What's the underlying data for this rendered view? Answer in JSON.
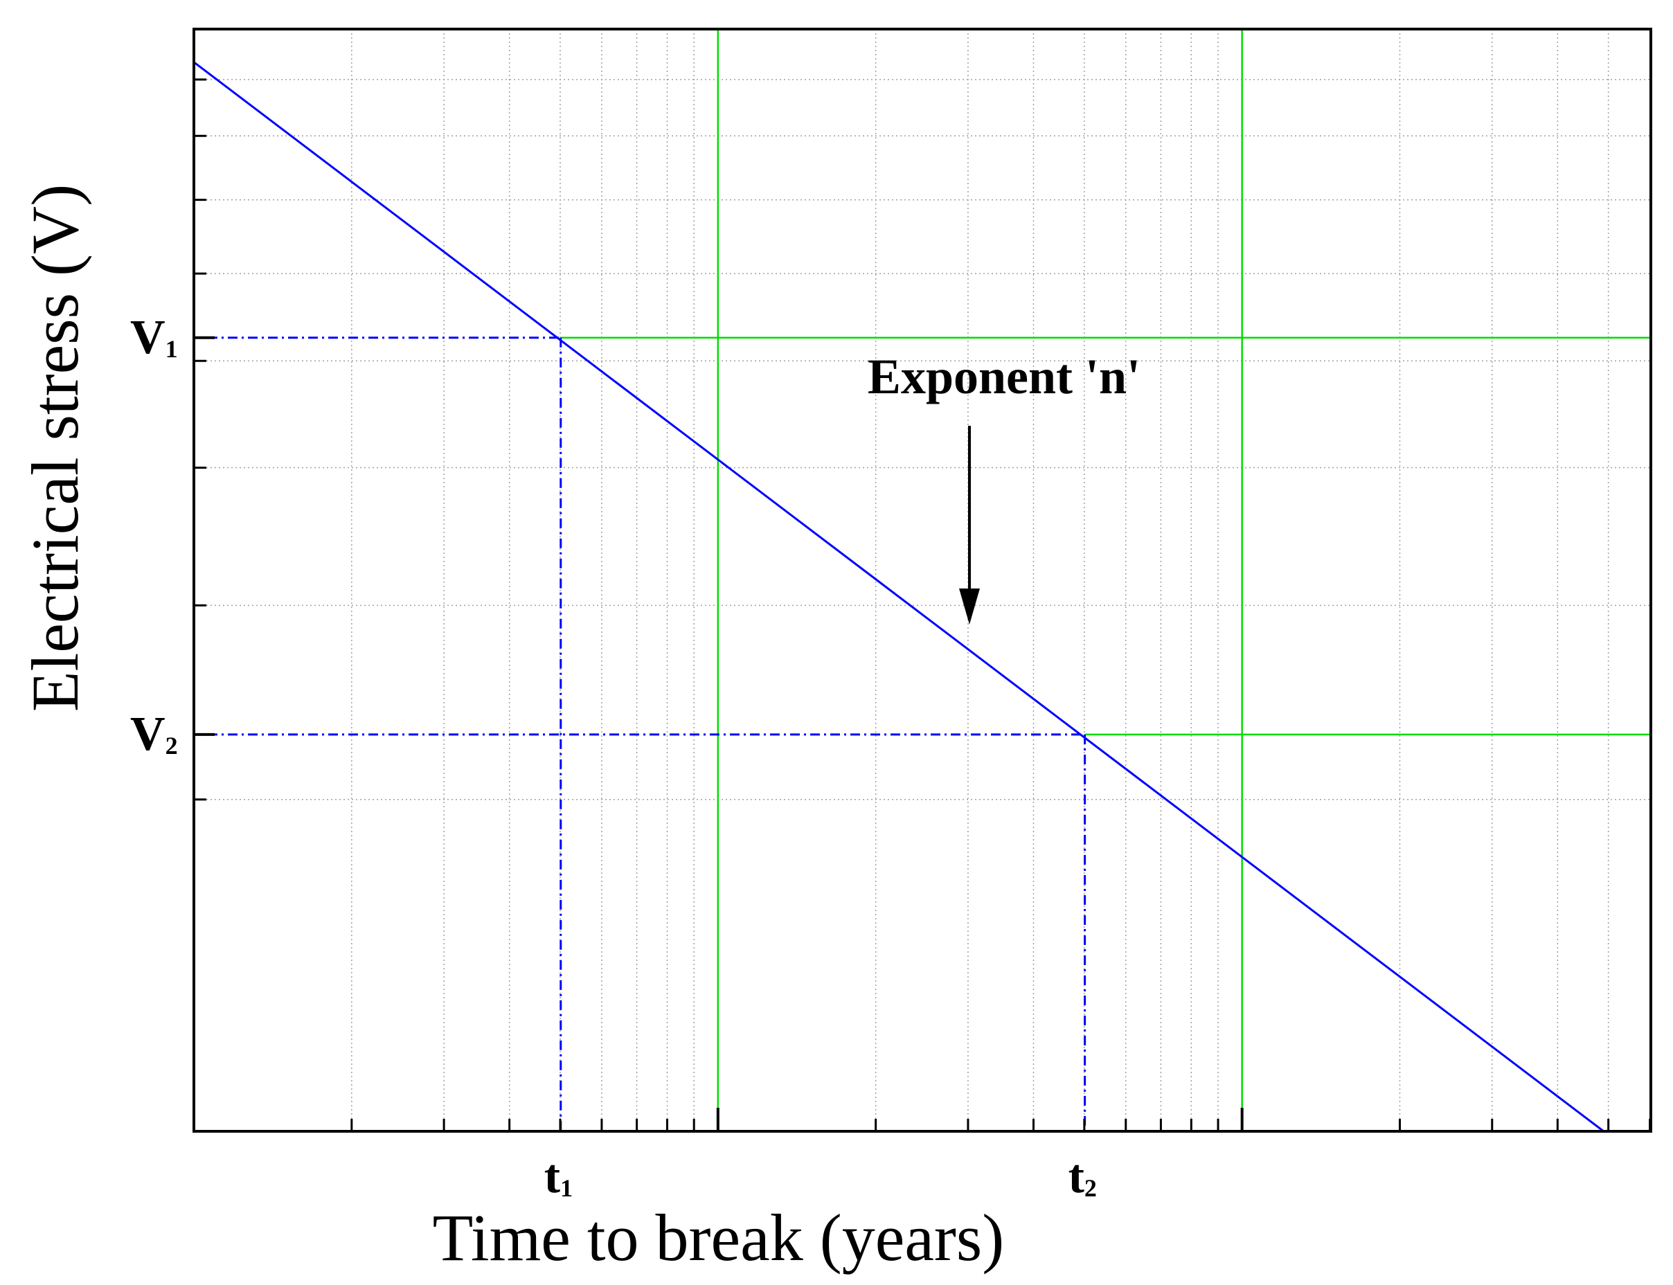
{
  "chart_data": {
    "type": "line",
    "xlabel": "Time to break (years)",
    "ylabel": "Electrical stress (V)",
    "x_scale": "log",
    "y_scale": "log",
    "xlim_decades": 2.78,
    "ylim_decades": 1.0,
    "major_x_decades": [
      1,
      2
    ],
    "grid": true,
    "line_color": "#0000ff",
    "major_grid_color": "#00dd00",
    "series": [
      {
        "name": "",
        "x_decades": [
          0,
          2.69
        ],
        "y_decades": [
          0.97,
          0
        ]
      }
    ],
    "markers": [
      {
        "x_label": "t",
        "x_sub": "1",
        "y_label": "V",
        "y_sub": "1",
        "x_decade": 0.7,
        "y_decade": 0.72
      },
      {
        "x_label": "t",
        "x_sub": "2",
        "y_label": "V",
        "y_sub": "2",
        "x_decade": 1.7,
        "y_decade": 0.36
      }
    ],
    "annotation": {
      "text": "Exponent 'n'"
    }
  }
}
